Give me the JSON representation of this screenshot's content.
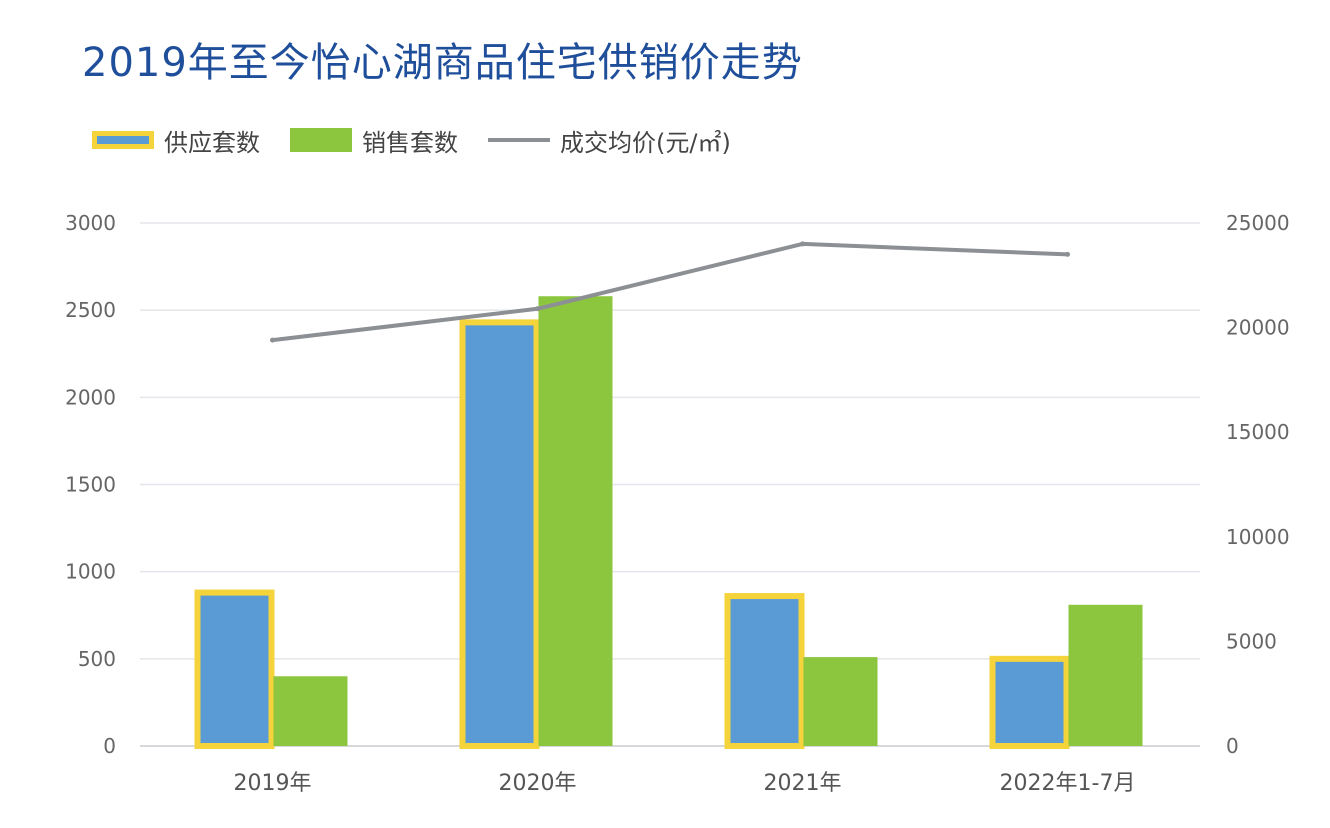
{
  "title": "2019年至今怡心湖商品住宅供销价走势",
  "legend": {
    "supply": "供应套数",
    "sales": "销售套数",
    "price": "成交均价(元/㎡)"
  },
  "colors": {
    "supply": "#5b9bd5",
    "supply_border": "#f5d33a",
    "sales": "#8cc63f",
    "price": "#8c8f93",
    "grid": "#e3e6ea",
    "title": "#1f4e9a"
  },
  "chart_data": {
    "type": "bar",
    "categories": [
      "2019年",
      "2020年",
      "2021年",
      "2022年1-7月"
    ],
    "series": [
      {
        "name": "供应套数",
        "type": "bar",
        "axis": "left",
        "values": [
          880,
          2430,
          860,
          500
        ]
      },
      {
        "name": "销售套数",
        "type": "bar",
        "axis": "left",
        "values": [
          400,
          2580,
          510,
          810
        ]
      },
      {
        "name": "成交均价(元/㎡)",
        "type": "line",
        "axis": "right",
        "values": [
          19400,
          20900,
          24000,
          23500
        ]
      }
    ],
    "ylim_left": [
      0,
      3000
    ],
    "ylim_right": [
      0,
      25000
    ],
    "yticks_left": [
      "0",
      "500",
      "1000",
      "1500",
      "2000",
      "2500",
      "3000"
    ],
    "yticks_right": [
      "0",
      "5000",
      "10000",
      "15000",
      "20000",
      "25000"
    ],
    "grid": true,
    "legend_position": "top-left"
  }
}
